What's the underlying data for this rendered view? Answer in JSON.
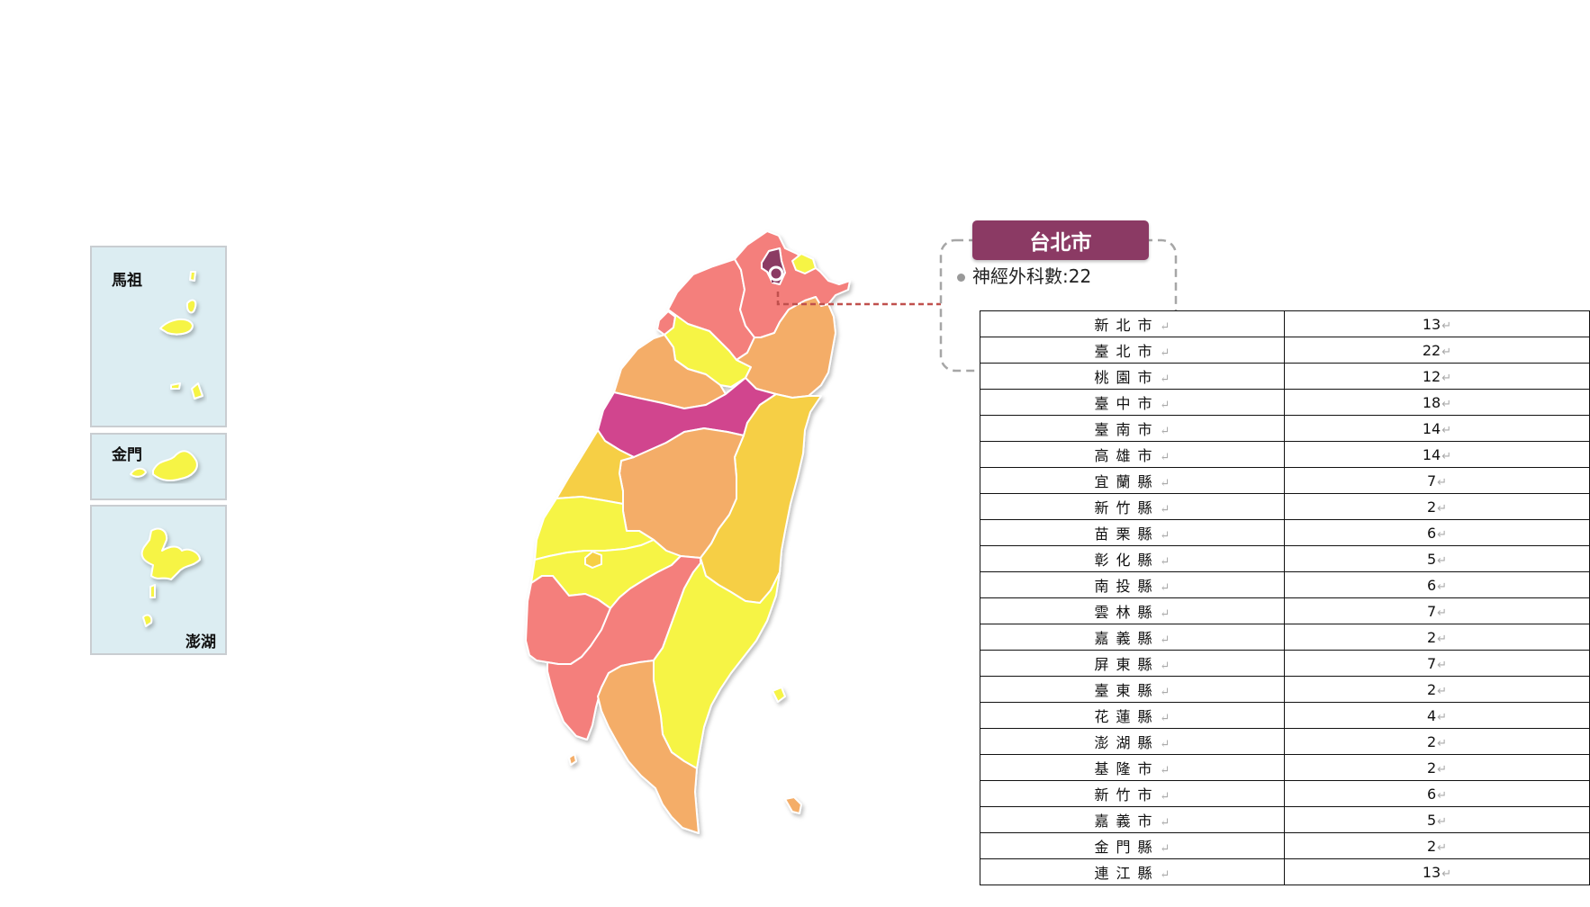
{
  "insets": [
    {
      "id": "matsu",
      "label": "馬祖"
    },
    {
      "id": "kinmen",
      "label": "金門"
    },
    {
      "id": "penghu",
      "label": "澎湖"
    }
  ],
  "callout": {
    "title": "台北市",
    "text": "神經外科數:22"
  },
  "colors": {
    "highlight": "#8b3a64",
    "magenta": "#d1458e",
    "salmon": "#f47f7c",
    "orange": "#f4ad67",
    "amber": "#f6cf45",
    "yellow": "#f6f444",
    "inset_bg": "#dcedf2"
  },
  "table": {
    "rows": [
      {
        "name": "新北市",
        "value": "13"
      },
      {
        "name": "臺北市",
        "value": "22"
      },
      {
        "name": "桃園市",
        "value": "12"
      },
      {
        "name": "臺中市",
        "value": "18"
      },
      {
        "name": "臺南市",
        "value": "14"
      },
      {
        "name": "高雄市",
        "value": "14"
      },
      {
        "name": "宜蘭縣",
        "value": "7"
      },
      {
        "name": "新竹縣",
        "value": "2"
      },
      {
        "name": "苗栗縣",
        "value": "6"
      },
      {
        "name": "彰化縣",
        "value": "5"
      },
      {
        "name": "南投縣",
        "value": "6"
      },
      {
        "name": "雲林縣",
        "value": "7"
      },
      {
        "name": "嘉義縣",
        "value": "2"
      },
      {
        "name": "屏東縣",
        "value": "7"
      },
      {
        "name": "臺東縣",
        "value": "2"
      },
      {
        "name": "花蓮縣",
        "value": "4"
      },
      {
        "name": "澎湖縣",
        "value": "2"
      },
      {
        "name": "基隆市",
        "value": "2"
      },
      {
        "name": "新竹市",
        "value": "6"
      },
      {
        "name": "嘉義市",
        "value": "5"
      },
      {
        "name": "金門縣",
        "value": "2"
      },
      {
        "name": "連江縣",
        "value": "13"
      }
    ]
  }
}
